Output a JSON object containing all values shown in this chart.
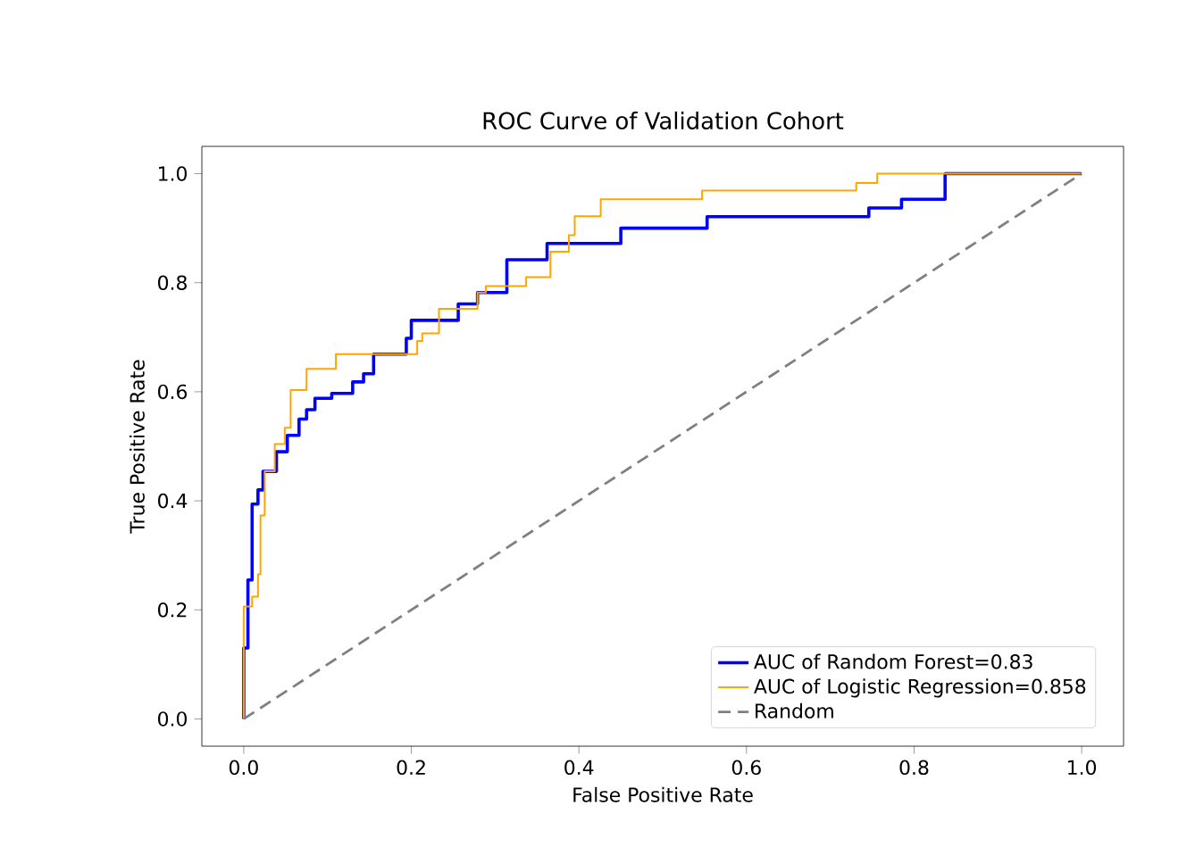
{
  "chart_data": {
    "type": "line",
    "title": "ROC Curve of Validation Cohort",
    "xlabel": "False Positive Rate",
    "ylabel": "True Positive Rate",
    "xlim": [
      -0.05,
      1.05
    ],
    "ylim": [
      -0.05,
      1.05
    ],
    "xticks": [
      {
        "value": 0,
        "label": "0.0"
      },
      {
        "value": 0.2,
        "label": "0.2"
      },
      {
        "value": 0.4,
        "label": "0.4"
      },
      {
        "value": 0.6,
        "label": "0.6"
      },
      {
        "value": 0.8,
        "label": "0.8"
      },
      {
        "value": 1,
        "label": "1.0"
      }
    ],
    "yticks": [
      {
        "value": 0,
        "label": "0.0"
      },
      {
        "value": 0.2,
        "label": "0.2"
      },
      {
        "value": 0.4,
        "label": "0.4"
      },
      {
        "value": 0.6,
        "label": "0.6"
      },
      {
        "value": 0.8,
        "label": "0.8"
      },
      {
        "value": 1,
        "label": "1.0"
      }
    ],
    "legend": "bottom right",
    "grid": false,
    "marker": "none",
    "series": [
      {
        "name": "AUC of Random Forest=0.83",
        "color": "#0000ff",
        "line_style": "solid",
        "x": [
          0,
          0,
          0.005,
          0.005,
          0.01,
          0.01,
          0.017,
          0.017,
          0.023,
          0.023,
          0.039,
          0.039,
          0.052,
          0.052,
          0.066,
          0.066,
          0.075,
          0.075,
          0.085,
          0.085,
          0.105,
          0.105,
          0.13,
          0.13,
          0.143,
          0.143,
          0.155,
          0.155,
          0.194,
          0.194,
          0.2,
          0.2,
          0.256,
          0.256,
          0.279,
          0.279,
          0.314,
          0.314,
          0.362,
          0.362,
          0.45,
          0.45,
          0.553,
          0.553,
          0.746,
          0.746,
          0.785,
          0.785,
          0.837,
          0.837,
          1
        ],
        "values": [
          0,
          0.13,
          0.13,
          0.255,
          0.255,
          0.394,
          0.394,
          0.42,
          0.42,
          0.454,
          0.454,
          0.49,
          0.49,
          0.52,
          0.52,
          0.55,
          0.55,
          0.567,
          0.567,
          0.588,
          0.588,
          0.597,
          0.597,
          0.618,
          0.618,
          0.633,
          0.633,
          0.669,
          0.669,
          0.698,
          0.698,
          0.731,
          0.731,
          0.761,
          0.761,
          0.782,
          0.782,
          0.842,
          0.842,
          0.872,
          0.872,
          0.9,
          0.9,
          0.921,
          0.921,
          0.937,
          0.937,
          0.953,
          0.953,
          1,
          1
        ]
      },
      {
        "name": "AUC of Logistic Regression=0.858",
        "color": "#ffa500",
        "line_style": "solid",
        "x": [
          0,
          0,
          0.01,
          0.01,
          0.017,
          0.017,
          0.02,
          0.02,
          0.025,
          0.025,
          0.037,
          0.037,
          0.049,
          0.049,
          0.056,
          0.056,
          0.075,
          0.075,
          0.11,
          0.11,
          0.198,
          0.198,
          0.207,
          0.207,
          0.213,
          0.213,
          0.233,
          0.233,
          0.279,
          0.279,
          0.289,
          0.289,
          0.337,
          0.337,
          0.366,
          0.366,
          0.388,
          0.388,
          0.395,
          0.395,
          0.426,
          0.426,
          0.547,
          0.547,
          0.731,
          0.731,
          0.756,
          0.756,
          1
        ],
        "values": [
          0,
          0.206,
          0.206,
          0.224,
          0.224,
          0.265,
          0.265,
          0.373,
          0.373,
          0.454,
          0.454,
          0.504,
          0.504,
          0.534,
          0.534,
          0.603,
          0.603,
          0.642,
          0.642,
          0.669,
          0.669,
          0.669,
          0.669,
          0.693,
          0.693,
          0.707,
          0.707,
          0.752,
          0.752,
          0.782,
          0.782,
          0.794,
          0.794,
          0.81,
          0.81,
          0.857,
          0.857,
          0.887,
          0.887,
          0.922,
          0.922,
          0.953,
          0.953,
          0.969,
          0.969,
          0.983,
          0.983,
          1,
          1
        ]
      },
      {
        "name": "Random",
        "color": "#808080",
        "line_style": "dashed",
        "x": [
          0,
          1
        ],
        "values": [
          0,
          1
        ]
      }
    ]
  }
}
